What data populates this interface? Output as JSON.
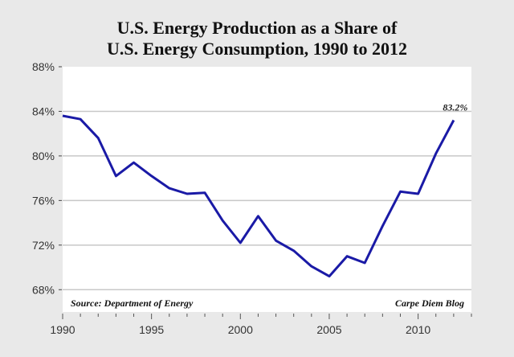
{
  "chart_data": {
    "type": "line",
    "title_line1": "U.S. Energy Production as a Share of",
    "title_line2": "U.S. Energy Consumption, 1990 to 2012",
    "xlabel": "",
    "ylabel": "",
    "xlim": [
      1990,
      2013
    ],
    "ylim": [
      66,
      88
    ],
    "x_ticks": [
      "1990",
      "1995",
      "2000",
      "2005",
      "2010"
    ],
    "y_ticks": [
      "68%",
      "72%",
      "76%",
      "80%",
      "84%",
      "88%"
    ],
    "grid": "horizontal",
    "legend": "none",
    "line_color": "#1a1aa6",
    "x": [
      1990,
      1991,
      1992,
      1993,
      1994,
      1995,
      1996,
      1997,
      1998,
      1999,
      2000,
      2001,
      2002,
      2003,
      2004,
      2005,
      2006,
      2007,
      2008,
      2009,
      2010,
      2011,
      2012
    ],
    "y": [
      83.6,
      83.3,
      81.6,
      78.2,
      79.4,
      78.2,
      77.1,
      76.6,
      76.7,
      74.2,
      72.2,
      74.6,
      72.4,
      71.5,
      70.1,
      69.2,
      71.0,
      70.4,
      73.7,
      76.8,
      76.6,
      80.2,
      83.2
    ],
    "annotation": "83.2%",
    "source": "Source: Department of Energy",
    "credit": "Carpe Diem Blog"
  }
}
